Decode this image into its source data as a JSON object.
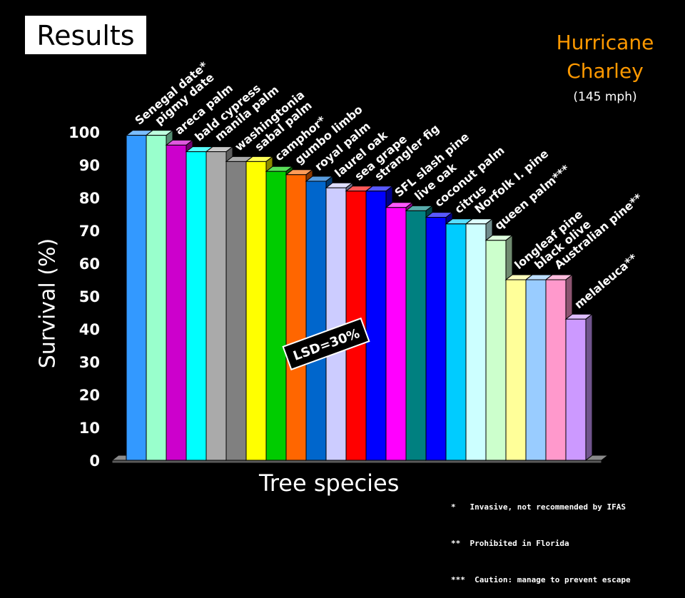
{
  "title_box": "Results",
  "event": {
    "line1": "Hurricane",
    "line2": "Charley",
    "speed": "(145 mph)"
  },
  "lsd_label": "LSD=30%",
  "footnotes": [
    "*   Invasive, not recommended by IFAS",
    "**  Prohibited in Florida",
    "***  Caution: manage to prevent escape"
  ],
  "colors": {
    "background": "#000000",
    "title_accent": "#ff9900"
  },
  "chart_data": {
    "type": "bar",
    "xlabel": "Tree species",
    "ylabel": "Survival (%)",
    "ylim": [
      0,
      100
    ],
    "yticks": [
      0,
      10,
      20,
      30,
      40,
      50,
      60,
      70,
      80,
      90,
      100
    ],
    "grid": false,
    "categories": [
      "Senegal date*",
      "pigmy date",
      "areca palm",
      "bald cypress",
      "manila palm",
      "washingtonia",
      "sabal palm",
      "camphor*",
      "gumbo limbo",
      "royal palm",
      "laurel oak",
      "sea grape",
      "strangler fig",
      "SFL slash pine",
      "live oak",
      "coconut palm",
      "citrus",
      "Norfolk I. pine",
      "queen palm***",
      "longleaf pine",
      "black olive",
      "Australian pine**",
      "melaleuca**"
    ],
    "values": [
      99,
      99,
      96,
      94,
      94,
      91,
      91,
      88,
      87,
      85,
      83,
      82,
      82,
      77,
      76,
      74,
      72,
      72,
      67,
      55,
      55,
      55,
      43
    ],
    "bar_colors": [
      "#3399ff",
      "#99ffcc",
      "#cc00cc",
      "#00ffff",
      "#aaaaaa",
      "#808080",
      "#ffff00",
      "#00cc00",
      "#ff6600",
      "#0066cc",
      "#ccccff",
      "#ff0000",
      "#0000ff",
      "#ff00ff",
      "#008080",
      "#0000ff",
      "#00ccff",
      "#ccffff",
      "#ccffcc",
      "#ffff99",
      "#99ccff",
      "#ff99cc",
      "#cc99ff"
    ]
  }
}
